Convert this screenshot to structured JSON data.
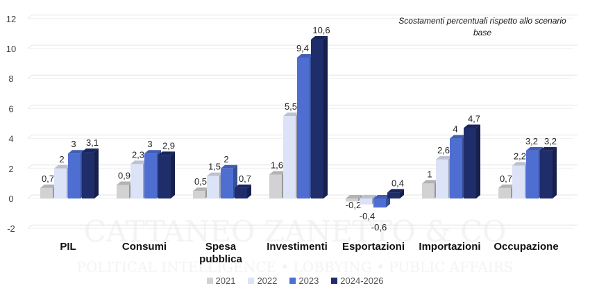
{
  "chart_data": {
    "type": "bar",
    "subtitle": "Scostamenti percentuali rispetto allo scenario base",
    "categories": [
      "PIL",
      "Consumi",
      "Spesa pubblica",
      "Investimenti",
      "Esportazioni",
      "Importazioni",
      "Occupazione"
    ],
    "series": [
      {
        "name": "2021",
        "color": "#d2d2d4",
        "values": [
          0.7,
          0.9,
          0.5,
          1.6,
          -0.2,
          1,
          0.7
        ]
      },
      {
        "name": "2022",
        "color": "#dce3f6",
        "values": [
          2,
          2.3,
          1.5,
          5.5,
          -0.4,
          2.6,
          2.2
        ]
      },
      {
        "name": "2023",
        "color": "#4e6ed2",
        "values": [
          3,
          3,
          2,
          9.4,
          -0.6,
          4,
          3.2
        ]
      },
      {
        "name": "2024-2026",
        "color": "#1f2d6b",
        "values": [
          3.1,
          2.9,
          0.7,
          10.6,
          0.4,
          4.7,
          3.2
        ]
      }
    ],
    "yticks": [
      -2,
      0,
      2,
      4,
      6,
      8,
      10,
      12
    ],
    "ylim": [
      -2,
      12
    ],
    "grid": true,
    "legend": "bottom",
    "data_labels": true,
    "style": "3d-clustered-column"
  },
  "watermark": {
    "line1": "CATTANEO ZANETTO & CO",
    "line2": "POLITICAL INTELLIGENCE • LOBBYING • PUBLIC AFFAIRS"
  }
}
